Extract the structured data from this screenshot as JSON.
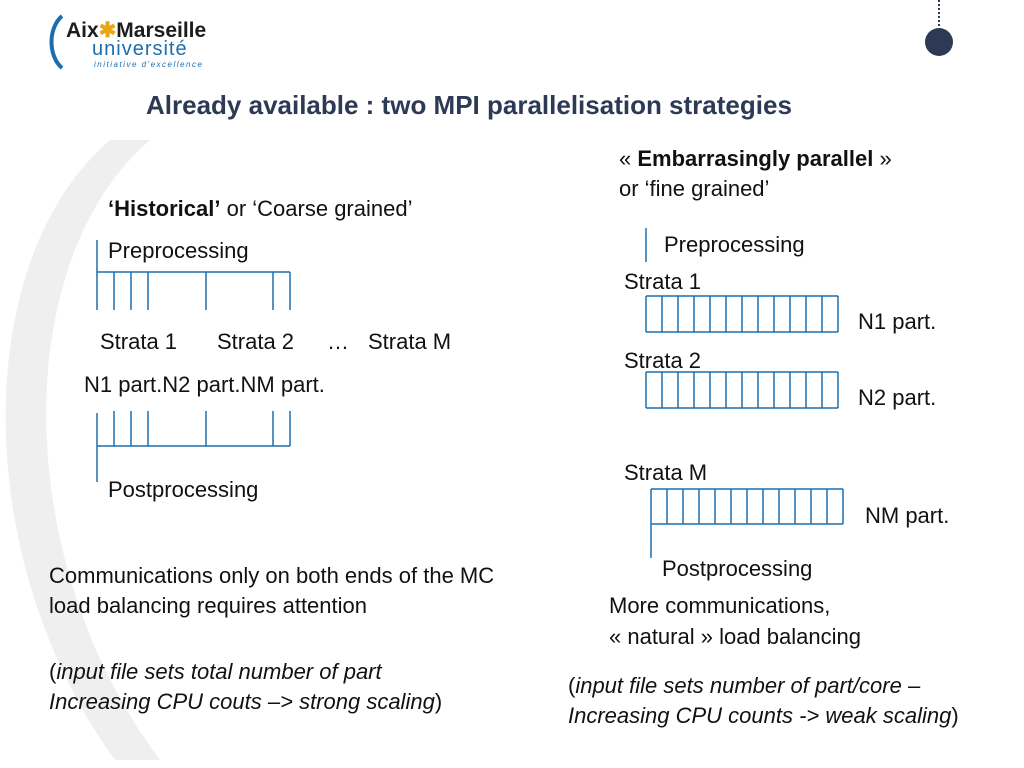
{
  "logo": {
    "aix": "Aix",
    "star": "✱",
    "marseille": "Marseille",
    "universite": "université",
    "tagline": "initiative d'excellence"
  },
  "slide_title": "Already available : two MPI parallelisation strategies",
  "left": {
    "heading_bold": "‘Historical’",
    "heading_rest": " or ‘Coarse grained’",
    "preprocessing": "Preprocessing",
    "strata1": "Strata 1",
    "strata2": "Strata 2",
    "ellipsis": "…",
    "strataM": "Strata M",
    "n1": "N1 part.",
    "n2": "N2 part.",
    "nm": "NM part.",
    "postprocessing": "Postprocessing",
    "comm_line1": "Communications only on both ends of the MC",
    "comm_line2": "load balancing requires attention",
    "note_open": "(",
    "note_line1": "input file sets total number of part",
    "note_line2": "Increasing CPU couts –>  strong scaling",
    "note_close": ")"
  },
  "right": {
    "heading_open": "« ",
    "heading_bold": "Embarrasingly parallel",
    "heading_close": " »",
    "heading_line2": "or ‘fine grained’",
    "preprocessing": "Preprocessing",
    "strata1": "Strata 1",
    "n1": "N1 part.",
    "strata2": "Strata 2",
    "n2": "N2 part.",
    "strataM": "Strata M",
    "nm": "NM part.",
    "postprocessing": "Postprocessing",
    "comm_line1": "More communications,",
    "comm_line2": "« natural » load balancing",
    "note_open": "(",
    "note_line1": "input file sets number of part/core –",
    "note_line2": "Increasing CPU counts -> weak scaling",
    "note_close": ")"
  },
  "colors": {
    "title": "#2d3a55",
    "lines": "#1a6fb0",
    "arc": "#ececec",
    "logo_blue": "#1a6fb0",
    "logo_star": "#e6a817"
  }
}
